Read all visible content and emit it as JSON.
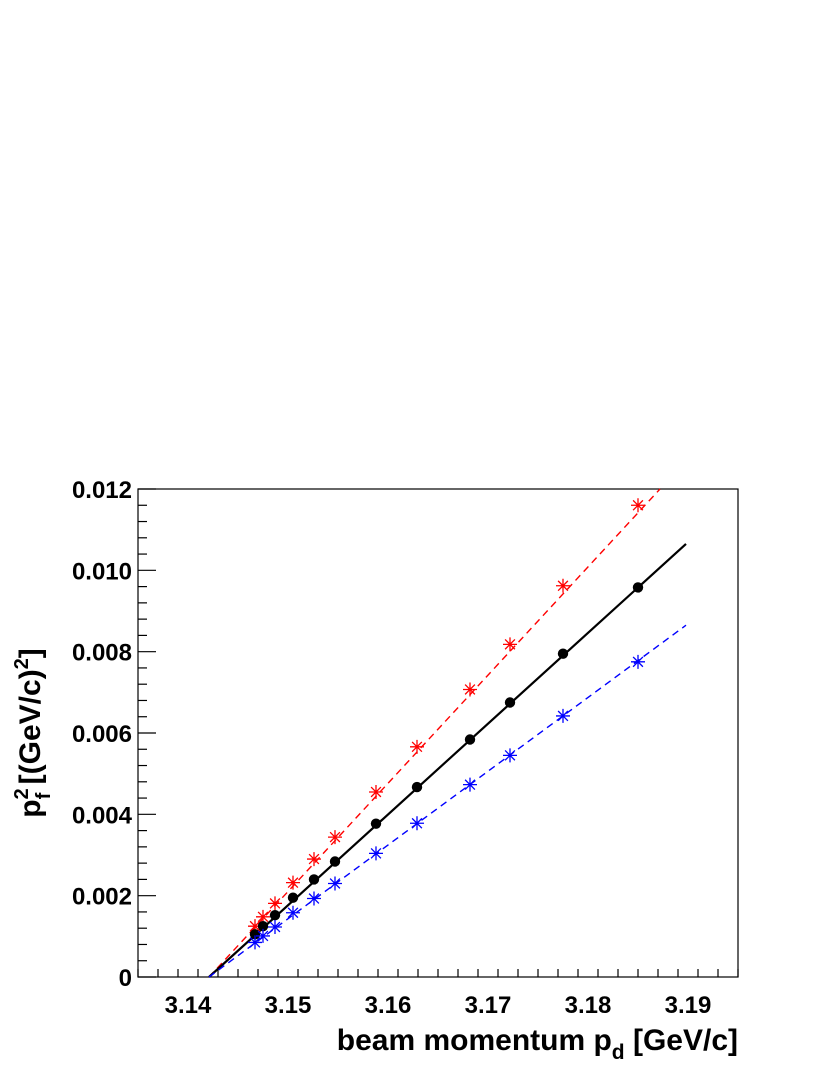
{
  "chart_data": {
    "type": "scatter",
    "xlabel": {
      "main": "beam momentum p",
      "sub": "d",
      "unit": " [GeV/c]"
    },
    "ylabel": {
      "base": "p",
      "sup": "2",
      "sub": "f",
      "mid": " [(GeV/c)",
      "sup2": "2",
      "end": "]"
    },
    "xlim": [
      3.135,
      3.195
    ],
    "ylim": [
      0,
      0.012
    ],
    "x_ticks": [
      3.14,
      3.15,
      3.16,
      3.17,
      3.18,
      3.19
    ],
    "x_tick_labels": [
      "3.14",
      "3.15",
      "3.16",
      "3.17",
      "3.18",
      "3.19"
    ],
    "y_ticks": [
      0,
      0.002,
      0.004,
      0.006,
      0.008,
      0.01,
      0.012
    ],
    "y_tick_labels": [
      "0",
      "0.002",
      "0.004",
      "0.006",
      "0.008",
      "0.010",
      "0.012"
    ],
    "grid": false,
    "legend": "none",
    "series": [
      {
        "color": "#ff0000",
        "marker": "star",
        "line": "dashed",
        "x": [
          3.1467,
          3.1475,
          3.1487,
          3.1505,
          3.1526,
          3.1547,
          3.1588,
          3.1629,
          3.1682,
          3.1722,
          3.1775,
          3.185
        ],
        "y": [
          0.00125,
          0.00148,
          0.00181,
          0.00232,
          0.0029,
          0.00344,
          0.00455,
          0.00566,
          0.00707,
          0.00818,
          0.00962,
          0.0116
        ],
        "fit_x": [
          3.1421,
          3.1872
        ],
        "fit_y": [
          0.0,
          0.012
        ]
      },
      {
        "color": "#000000",
        "marker": "circle",
        "line": "solid",
        "x": [
          3.1467,
          3.1475,
          3.1487,
          3.1505,
          3.1526,
          3.1547,
          3.1588,
          3.1629,
          3.1682,
          3.1722,
          3.1775,
          3.185
        ],
        "y": [
          0.00105,
          0.00125,
          0.00152,
          0.00195,
          0.0024,
          0.00284,
          0.00377,
          0.00467,
          0.00584,
          0.00675,
          0.00795,
          0.00958
        ],
        "fit_x": [
          3.1421,
          3.1898
        ],
        "fit_y": [
          0.0,
          0.01065
        ]
      },
      {
        "color": "#0000ff",
        "marker": "star",
        "line": "dashed",
        "x": [
          3.1467,
          3.1475,
          3.1487,
          3.1505,
          3.1526,
          3.1547,
          3.1588,
          3.1629,
          3.1682,
          3.1722,
          3.1775,
          3.185
        ],
        "y": [
          0.00085,
          0.00101,
          0.00123,
          0.00158,
          0.00193,
          0.0023,
          0.00304,
          0.00378,
          0.00473,
          0.00545,
          0.00642,
          0.00775
        ],
        "fit_x": [
          3.1421,
          3.1898
        ],
        "fit_y": [
          0.0,
          0.00865
        ]
      }
    ]
  }
}
